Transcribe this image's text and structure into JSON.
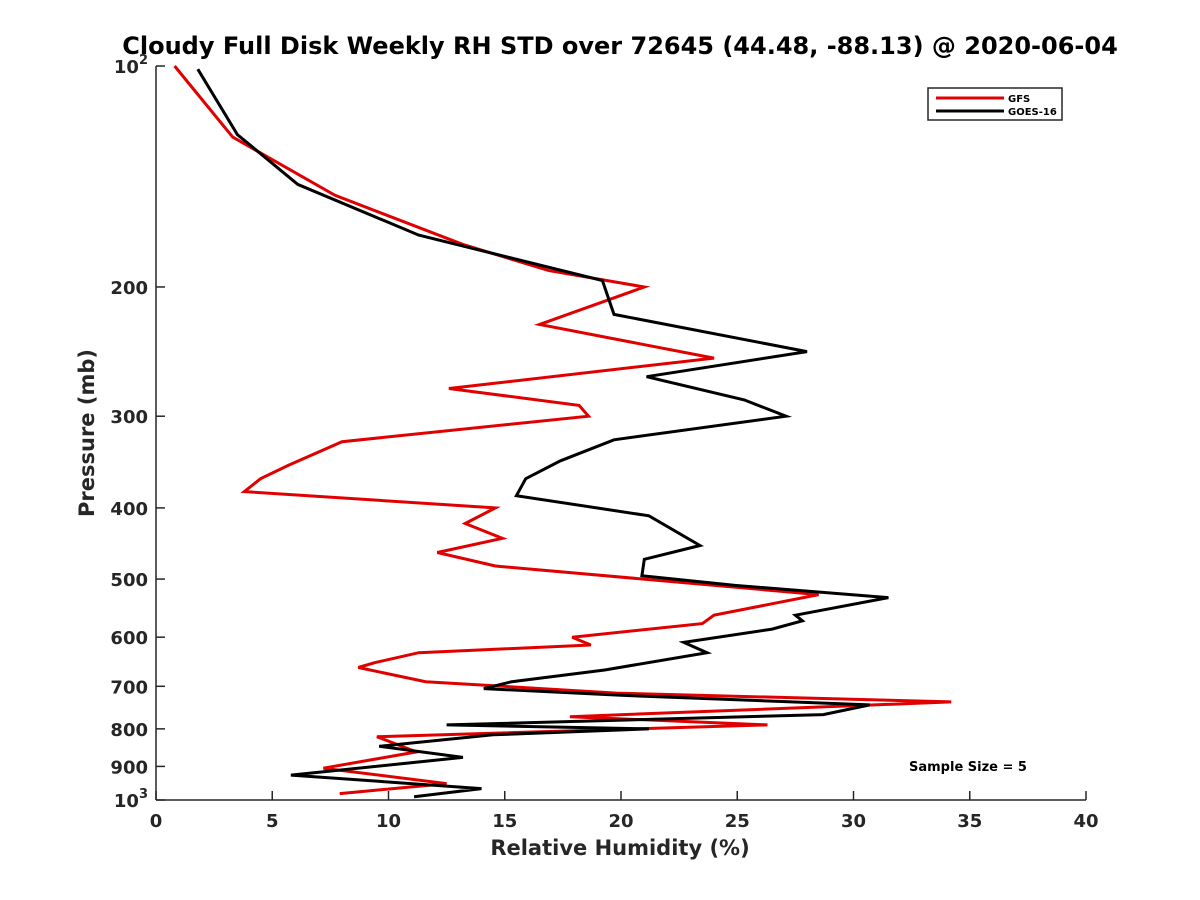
{
  "chart_data": {
    "type": "line",
    "title": "Cloudy Full Disk Weekly RH STD over 72645 (44.48, -88.13) @ 2020-06-04",
    "xlabel": "Relative Humidity (%)",
    "ylabel": "Pressure (mb)",
    "xlim": [
      0,
      40
    ],
    "ylim": [
      100,
      1000
    ],
    "y_scale": "log",
    "y_reversed": true,
    "x_ticks": [
      "0",
      "5",
      "10",
      "15",
      "20",
      "25",
      "30",
      "35",
      "40"
    ],
    "y_ticks": [
      {
        "value": 100,
        "label": "10",
        "exp": "2"
      },
      {
        "value": 200,
        "label": "200"
      },
      {
        "value": 300,
        "label": "300"
      },
      {
        "value": 400,
        "label": "400"
      },
      {
        "value": 500,
        "label": "500"
      },
      {
        "value": 600,
        "label": "600"
      },
      {
        "value": 700,
        "label": "700"
      },
      {
        "value": 800,
        "label": "800"
      },
      {
        "value": 900,
        "label": "900"
      },
      {
        "value": 1000,
        "label": "10",
        "exp": "3"
      }
    ],
    "legend_position": "top-right",
    "annotation": "Sample Size = 5",
    "series": [
      {
        "name": "GFS",
        "color": "#e00000",
        "points": [
          [
            0.8,
            100
          ],
          [
            3.3,
            125
          ],
          [
            7.7,
            150
          ],
          [
            13.2,
            175
          ],
          [
            16.9,
            190
          ],
          [
            21.0,
            200
          ],
          [
            16.5,
            225
          ],
          [
            24.0,
            250
          ],
          [
            12.6,
            275
          ],
          [
            18.2,
            290
          ],
          [
            18.6,
            300
          ],
          [
            8.0,
            325
          ],
          [
            5.7,
            350
          ],
          [
            4.5,
            365
          ],
          [
            3.8,
            380
          ],
          [
            14.6,
            400
          ],
          [
            13.3,
            420
          ],
          [
            14.9,
            440
          ],
          [
            12.1,
            460
          ],
          [
            14.6,
            480
          ],
          [
            28.5,
            525
          ],
          [
            24.0,
            560
          ],
          [
            23.5,
            575
          ],
          [
            17.9,
            600
          ],
          [
            18.7,
            615
          ],
          [
            11.3,
            630
          ],
          [
            9.4,
            650
          ],
          [
            8.7,
            660
          ],
          [
            11.6,
            690
          ],
          [
            19.8,
            715
          ],
          [
            34.2,
            735
          ],
          [
            17.8,
            770
          ],
          [
            26.3,
            790
          ],
          [
            9.5,
            820
          ],
          [
            11.2,
            860
          ],
          [
            7.2,
            905
          ],
          [
            12.5,
            950
          ],
          [
            7.9,
            980
          ]
        ]
      },
      {
        "name": "GOES-16",
        "color": "#000000",
        "points": [
          [
            1.8,
            101
          ],
          [
            3.5,
            124
          ],
          [
            6.1,
            145
          ],
          [
            11.3,
            170
          ],
          [
            19.2,
            196
          ],
          [
            19.7,
            218
          ],
          [
            28.0,
            245
          ],
          [
            21.1,
            265
          ],
          [
            25.3,
            285
          ],
          [
            27.1,
            300
          ],
          [
            19.7,
            323
          ],
          [
            17.4,
            345
          ],
          [
            15.9,
            365
          ],
          [
            15.5,
            385
          ],
          [
            21.2,
            410
          ],
          [
            23.4,
            450
          ],
          [
            21.0,
            470
          ],
          [
            20.9,
            495
          ],
          [
            24.9,
            510
          ],
          [
            31.5,
            530
          ],
          [
            27.5,
            560
          ],
          [
            27.8,
            570
          ],
          [
            26.5,
            585
          ],
          [
            22.7,
            610
          ],
          [
            23.7,
            630
          ],
          [
            19.3,
            665
          ],
          [
            15.3,
            690
          ],
          [
            14.1,
            705
          ],
          [
            20.0,
            720
          ],
          [
            30.7,
            742
          ],
          [
            28.7,
            765
          ],
          [
            12.5,
            790
          ],
          [
            21.2,
            800
          ],
          [
            14.5,
            815
          ],
          [
            9.6,
            845
          ],
          [
            13.2,
            875
          ],
          [
            5.8,
            925
          ],
          [
            14.0,
            965
          ],
          [
            11.1,
            990
          ]
        ]
      }
    ]
  }
}
